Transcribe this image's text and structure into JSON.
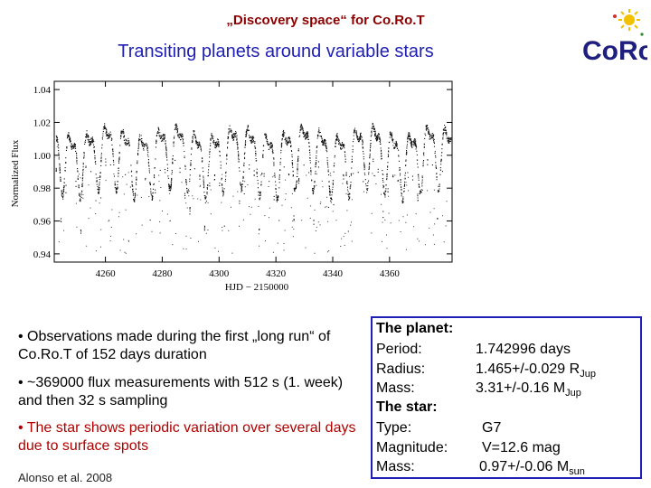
{
  "header": {
    "kicker": "„Discovery space“ for Co.Ro.T",
    "title": "Transiting planets around variable stars"
  },
  "logo": {
    "name": "corot-logo",
    "text": "CoRoT"
  },
  "chart_data": {
    "type": "scatter",
    "xlabel": "HJD − 2150000",
    "ylabel": "Normalized Flux",
    "xlim": [
      4242,
      4382
    ],
    "ylim": [
      0.935,
      1.045
    ],
    "xticks": [
      4260,
      4280,
      4300,
      4320,
      4340,
      4360
    ],
    "yticks": [
      0.94,
      0.96,
      0.98,
      1.0,
      1.02,
      1.04
    ],
    "ytick_labels": [
      "0.94",
      "0.96",
      "0.98",
      "1.00",
      "1.02",
      "1.04"
    ],
    "series": [
      {
        "approx_period_days": 6.3,
        "baseline_flux": 1.0,
        "amplitude_flux": 0.022,
        "transit_period_days": 1.742996,
        "scattered_low_points_min": 0.94
      }
    ]
  },
  "bullets": [
    "• Observations made during the first „long run“ of Co.Ro.T of 152 days duration",
    "• ~369000 flux measurements with 512 s (1. week) and then 32 s sampling",
    "• The star shows periodic variation over several days due to surface spots"
  ],
  "citation": "Alonso et al. 2008",
  "panel": {
    "planet_header": "The planet:",
    "period_label": "Period:",
    "period_value": "1.742996 days",
    "radius_label": "Radius:",
    "radius_value": "1.465+/-0.029 R",
    "radius_sub": "Jup",
    "mass_label": "Mass:",
    "mass_value": "3.31+/-0.16 M",
    "mass_sub": "Jup",
    "star_header": "The star:",
    "type_label": "Type:",
    "type_value": "G7",
    "magnitude_label": "Magnitude:",
    "magnitude_value": "V=12.6 mag",
    "star_mass_label": "Mass:",
    "star_mass_value": "0.97+/-0.06 M",
    "star_mass_sub": "sun"
  }
}
